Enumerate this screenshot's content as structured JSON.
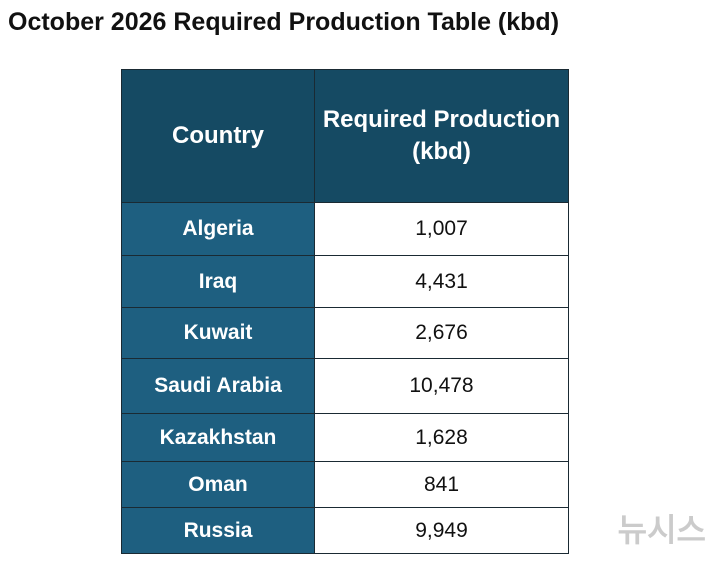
{
  "header": {
    "title": "October 2026 Required Production Table (kbd)"
  },
  "table": {
    "columns": [
      "Country",
      "Required Production (kbd)"
    ],
    "rows": [
      [
        "Algeria",
        "1,007"
      ],
      [
        "Iraq",
        "4,431"
      ],
      [
        "Kuwait",
        "2,676"
      ],
      [
        "Saudi Arabia",
        "10,478"
      ],
      [
        "Kazakhstan",
        "1,628"
      ],
      [
        "Oman",
        "841"
      ],
      [
        "Russia",
        "9,949"
      ]
    ]
  },
  "watermark": "뉴시스"
}
